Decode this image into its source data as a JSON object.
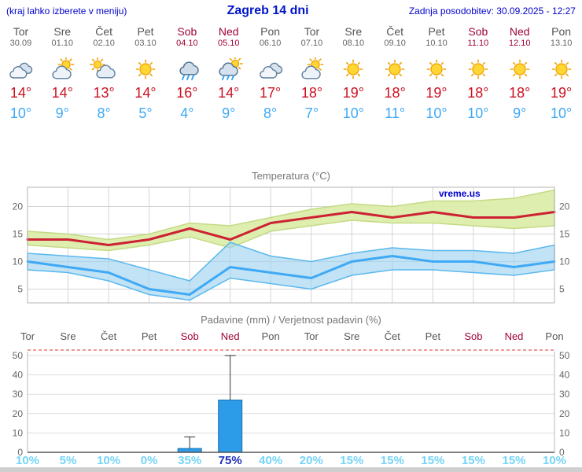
{
  "header": {
    "hint": "(kraj lahko izberete v meniju)",
    "title": "Zagreb 14 dni",
    "updated": "Zadnja posodobitev: 30.09.2025 - 12:27"
  },
  "colors": {
    "accent_blue": "#0000cc",
    "weekend": "#a00333",
    "tmax_line": "#cc2233",
    "tmin_line": "#3fa9f5",
    "tmax_band": "#dcedaa",
    "tmin_band": "#9fd4ef",
    "bar_fill": "#2d9ce8",
    "prob_light": "#74d4f7",
    "prob_strong": "#1d2fb8"
  },
  "days": [
    {
      "name": "Tor",
      "date": "30.09",
      "weekend": false,
      "icon": "cloudy",
      "tmax": "14°",
      "tmin": "10°"
    },
    {
      "name": "Sre",
      "date": "01.10",
      "weekend": false,
      "icon": "partly-cloudy",
      "tmax": "14°",
      "tmin": "9°"
    },
    {
      "name": "Čet",
      "date": "02.10",
      "weekend": false,
      "icon": "mostly-cloudy",
      "tmax": "13°",
      "tmin": "8°"
    },
    {
      "name": "Pet",
      "date": "03.10",
      "weekend": false,
      "icon": "sunny",
      "tmax": "14°",
      "tmin": "5°"
    },
    {
      "name": "Sob",
      "date": "04.10",
      "weekend": true,
      "icon": "rain",
      "tmax": "16°",
      "tmin": "4°"
    },
    {
      "name": "Ned",
      "date": "05.10",
      "weekend": true,
      "icon": "rain-sun",
      "tmax": "14°",
      "tmin": "9°"
    },
    {
      "name": "Pon",
      "date": "06.10",
      "weekend": false,
      "icon": "cloudy",
      "tmax": "17°",
      "tmin": "8°"
    },
    {
      "name": "Tor",
      "date": "07.10",
      "weekend": false,
      "icon": "partly-cloudy",
      "tmax": "18°",
      "tmin": "7°"
    },
    {
      "name": "Sre",
      "date": "08.10",
      "weekend": false,
      "icon": "sunny",
      "tmax": "19°",
      "tmin": "10°"
    },
    {
      "name": "Čet",
      "date": "09.10",
      "weekend": false,
      "icon": "sunny",
      "tmax": "18°",
      "tmin": "11°"
    },
    {
      "name": "Pet",
      "date": "10.10",
      "weekend": false,
      "icon": "sunny",
      "tmax": "19°",
      "tmin": "10°"
    },
    {
      "name": "Sob",
      "date": "11.10",
      "weekend": true,
      "icon": "sunny",
      "tmax": "18°",
      "tmin": "10°"
    },
    {
      "name": "Ned",
      "date": "12.10",
      "weekend": true,
      "icon": "sunny",
      "tmax": "18°",
      "tmin": "9°"
    },
    {
      "name": "Pon",
      "date": "13.10",
      "weekend": false,
      "icon": "sunny",
      "tmax": "19°",
      "tmin": "10°"
    }
  ],
  "chart_data": [
    {
      "type": "line",
      "title": "Temperatura (°C)",
      "watermark": "vreme.us",
      "categories": [
        "Tor",
        "Sre",
        "Čet",
        "Pet",
        "Sob",
        "Ned",
        "Pon",
        "Tor",
        "Sre",
        "Čet",
        "Pet",
        "Sob",
        "Ned",
        "Pon"
      ],
      "yticks": [
        5,
        10,
        15,
        20
      ],
      "ylim": [
        2.5,
        23.5
      ],
      "grid": true,
      "series": [
        {
          "name": "max-temperature",
          "color": "#cc2233",
          "values": [
            14,
            14,
            13,
            14,
            16,
            14,
            17,
            18,
            19,
            18,
            19,
            18,
            18,
            19
          ]
        },
        {
          "name": "min-temperature",
          "color": "#3fa9f5",
          "values": [
            10,
            9,
            8,
            5,
            4,
            9,
            8,
            7,
            10,
            11,
            10,
            10,
            9,
            10
          ]
        }
      ],
      "bands": [
        {
          "name": "max-temp-range",
          "fill": "#dcedaa",
          "edge": "#c4da85",
          "opacity": 0.95,
          "upper": [
            15.5,
            15,
            14,
            15,
            17,
            16.5,
            18,
            19.5,
            20.5,
            20,
            21,
            21,
            21.5,
            23
          ],
          "lower": [
            13,
            12.5,
            12,
            13,
            14.5,
            12.5,
            15.5,
            16.5,
            17.5,
            17,
            17,
            16.5,
            16,
            16.5
          ]
        },
        {
          "name": "min-temp-range",
          "fill": "#9fd4ef",
          "edge": "#5bb8ee",
          "opacity": 0.65,
          "upper": [
            11.5,
            11,
            10.5,
            8.5,
            6.5,
            13.5,
            11,
            10,
            11.5,
            12.5,
            12,
            12,
            11.5,
            13
          ],
          "lower": [
            8.5,
            8,
            6.5,
            4,
            3,
            7,
            6,
            5,
            7.5,
            8.5,
            8.5,
            8,
            7.5,
            8.5
          ]
        }
      ]
    },
    {
      "type": "bar",
      "title": "Padavine (mm) / Verjetnost padavin (%)",
      "categories": [
        "Tor",
        "Sre",
        "Čet",
        "Pet",
        "Sob",
        "Ned",
        "Pon",
        "Tor",
        "Sre",
        "Čet",
        "Pet",
        "Sob",
        "Ned",
        "Pon"
      ],
      "weekend": [
        false,
        false,
        false,
        false,
        true,
        true,
        false,
        false,
        false,
        false,
        false,
        true,
        true,
        false
      ],
      "yticks": [
        0,
        10,
        20,
        30,
        40,
        50
      ],
      "ylim": [
        0,
        52
      ],
      "values": [
        0,
        0,
        0,
        0,
        2,
        27,
        0,
        0,
        0,
        0,
        0,
        0,
        0,
        0
      ],
      "whisker_top": [
        0,
        0,
        0,
        0,
        8,
        50,
        0,
        0,
        0,
        0,
        0,
        0,
        0,
        0
      ],
      "probabilities": [
        "10%",
        "5%",
        "10%",
        "0%",
        "35%",
        "75%",
        "40%",
        "20%",
        "15%",
        "15%",
        "15%",
        "15%",
        "15%",
        "10%"
      ],
      "prob_highlight_index": 5
    }
  ]
}
